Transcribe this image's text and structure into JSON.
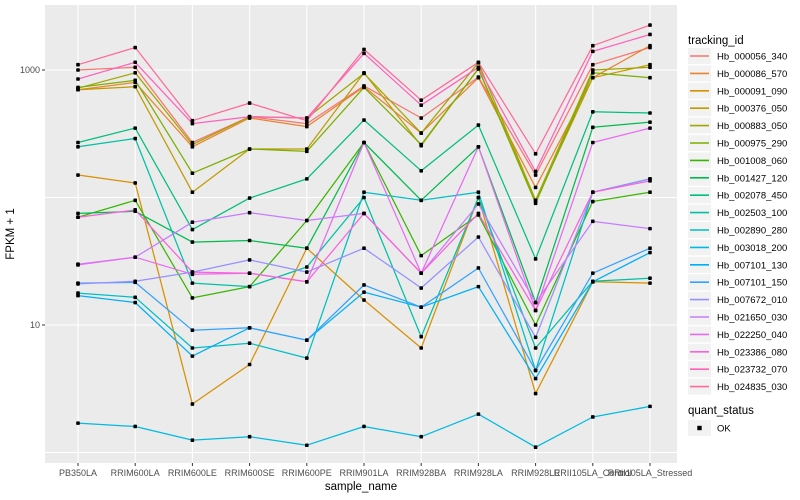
{
  "chart_data": {
    "type": "line",
    "title": "",
    "xlabel": "sample_name",
    "ylabel": "FPKM + 1",
    "y_scale": "log10",
    "ylim": [
      0.85,
      3000
    ],
    "y_tick_labels": [
      "1000",
      "10"
    ],
    "y_tick_values": [
      1000,
      10
    ],
    "gridline_values": [
      1000,
      100,
      10,
      1
    ],
    "grid": "on",
    "legend_position": "right",
    "panel_bg": "#EBEBEB",
    "gridline_color": "#FFFFFF",
    "tick_label_color": "#4D4D4D",
    "point_color": "#000000",
    "categories": [
      "PB350LA",
      "RRIM600LA",
      "RRIM600LE",
      "RRIM600SE",
      "RRIM600PE",
      "RRIM901LA",
      "RRIM928BA",
      "RRIM928LA",
      "RRIM928LE",
      "RRII105LA_Control",
      "RRII105LA_Stressed"
    ],
    "series": [
      {
        "name": "Hb_000056_340",
        "color": "#F8766D",
        "values": [
          1000,
          1050,
          270,
          430,
          380,
          750,
          420,
          880,
          150,
          1100,
          1500
        ]
      },
      {
        "name": "Hb_000086_570",
        "color": "#EA8331",
        "values": [
          700,
          800,
          250,
          420,
          360,
          740,
          320,
          870,
          120,
          870,
          1550
        ]
      },
      {
        "name": "Hb_000091_090",
        "color": "#D89000",
        "values": [
          150,
          130,
          2.4,
          4.9,
          40,
          15.7,
          6.6,
          100,
          2.9,
          21.8,
          21.3
        ]
      },
      {
        "name": "Hb_000376_050",
        "color": "#C09B00",
        "values": [
          700,
          740,
          110,
          240,
          240,
          950,
          255,
          1030,
          93,
          870,
          1100
        ]
      },
      {
        "name": "Hb_000883_050",
        "color": "#A3A500",
        "values": [
          720,
          950,
          260,
          430,
          420,
          940,
          320,
          1140,
          95,
          1000,
          1050
        ]
      },
      {
        "name": "Hb_000975_290",
        "color": "#7CAE00",
        "values": [
          730,
          830,
          155,
          240,
          230,
          730,
          260,
          1020,
          90,
          950,
          870
        ]
      },
      {
        "name": "Hb_001008_060",
        "color": "#39B600",
        "values": [
          70,
          95,
          16.3,
          20,
          66,
          270,
          35,
          73,
          10,
          93,
          110
        ]
      },
      {
        "name": "Hb_001427_120",
        "color": "#00BB4E",
        "values": [
          75,
          78,
          44.7,
          46,
          40,
          270,
          95,
          250,
          15,
          355,
          390
        ]
      },
      {
        "name": "Hb_002078_450",
        "color": "#00BF7D",
        "values": [
          270,
          350,
          56,
          99,
          140,
          405,
          162,
          370,
          33,
          470,
          460
        ]
      },
      {
        "name": "Hb_002503_100",
        "color": "#00C1A3",
        "values": [
          250,
          290,
          21.3,
          20,
          28.5,
          100,
          8.1,
          100,
          6.6,
          22,
          23.3
        ]
      },
      {
        "name": "Hb_002890_280",
        "color": "#00BFC4",
        "values": [
          17.8,
          16.5,
          6.6,
          7.2,
          5.5,
          110,
          95,
          110,
          4.4,
          110,
          140
        ]
      },
      {
        "name": "Hb_003018_200",
        "color": "#00BAE0",
        "values": [
          1.7,
          1.6,
          1.25,
          1.33,
          1.14,
          1.6,
          1.33,
          2.0,
          1.1,
          1.9,
          2.3
        ]
      },
      {
        "name": "Hb_007101_130",
        "color": "#00B0F6",
        "values": [
          17,
          15,
          5.7,
          9.5,
          7.6,
          18.1,
          13.8,
          20,
          3.8,
          21.8,
          37
        ]
      },
      {
        "name": "Hb_007101_150",
        "color": "#35A2FF",
        "values": [
          21.3,
          21.6,
          9.1,
          9.5,
          7.6,
          20.6,
          13.8,
          28,
          4.4,
          25.5,
          40
        ]
      },
      {
        "name": "Hb_007672_010",
        "color": "#9590FF",
        "values": [
          21,
          22,
          26,
          32.4,
          26,
          40,
          19.5,
          49,
          8,
          110,
          140
        ]
      },
      {
        "name": "Hb_021650_030",
        "color": "#C77CFF",
        "values": [
          30,
          34,
          64,
          76,
          66,
          75,
          25.5,
          89,
          15,
          65,
          57
        ]
      },
      {
        "name": "Hb_022250_040",
        "color": "#E76BF3",
        "values": [
          29.6,
          34,
          25,
          25.5,
          21.8,
          270,
          25.5,
          250,
          13,
          270,
          350
        ]
      },
      {
        "name": "Hb_023386_080",
        "color": "#FA62DB",
        "values": [
          70,
          80,
          26,
          25.5,
          21.8,
          75,
          25.5,
          75,
          13,
          110,
          135
        ]
      },
      {
        "name": "Hb_023732_070",
        "color": "#FF62BC",
        "values": [
          850,
          1150,
          380,
          430,
          420,
          1350,
          530,
          1050,
          160,
          1400,
          1900
        ]
      },
      {
        "name": "Hb_024835_030",
        "color": "#FF6A98",
        "values": [
          1100,
          1500,
          400,
          550,
          400,
          1450,
          580,
          1150,
          220,
          1550,
          2250
        ]
      }
    ]
  },
  "legend": {
    "tracking_title": "tracking_id",
    "quant_title": "quant_status",
    "quant_items": [
      {
        "label": "OK",
        "color": "#000000"
      }
    ]
  }
}
